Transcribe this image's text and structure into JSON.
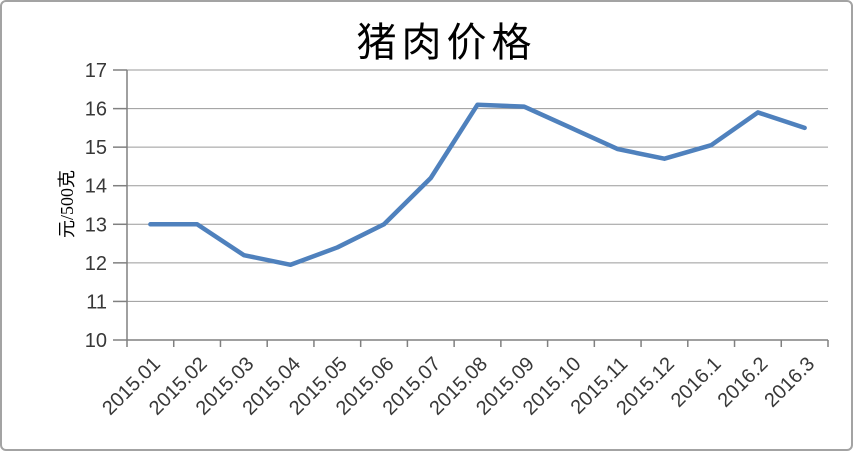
{
  "chart_data": {
    "type": "line",
    "title": "猪肉价格",
    "xlabel": "",
    "ylabel": "元/500克",
    "categories": [
      "2015.01",
      "2015.02",
      "2015.03",
      "2015.04",
      "2015.05",
      "2015.06",
      "2015.07",
      "2015.08",
      "2015.09",
      "2015.10",
      "2015.11",
      "2015.12",
      "2016.1",
      "2016.2",
      "2016.3"
    ],
    "values": [
      13.0,
      13.0,
      12.2,
      11.95,
      12.4,
      13.0,
      14.2,
      16.1,
      16.05,
      15.5,
      14.95,
      14.7,
      15.05,
      15.9,
      15.5
    ],
    "ylim": [
      10,
      17
    ],
    "ytick_step": 1,
    "grid": true,
    "legend_position": "none",
    "line_color": "#4F81BD",
    "grid_color": "#9a9a9a",
    "axis_color": "#808080",
    "tick_text_color": "#383838",
    "frame_border_color": "#a3a3a3",
    "background_color": "#ffffff"
  }
}
